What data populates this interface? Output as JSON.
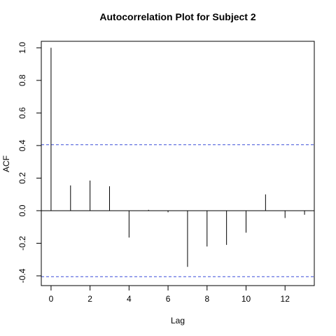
{
  "chart_data": {
    "type": "bar",
    "title": "Autocorrelation Plot for Subject 2",
    "xlabel": "Lag",
    "ylabel": "ACF",
    "xlim": [
      -0.5,
      13.5
    ],
    "ylim": [
      -0.46,
      1.04
    ],
    "x_ticks": [
      0,
      2,
      4,
      6,
      8,
      10,
      12
    ],
    "y_ticks": [
      -0.4,
      -0.2,
      0.0,
      0.2,
      0.4,
      0.6,
      0.8,
      1.0
    ],
    "y_tick_labels": [
      "-0.4",
      "-0.2",
      "0.0",
      "0.2",
      "0.4",
      "0.6",
      "0.8",
      "1.0"
    ],
    "lags": [
      0,
      1,
      2,
      3,
      4,
      5,
      6,
      7,
      8,
      9,
      10,
      11,
      12,
      13
    ],
    "values": [
      1.0,
      0.155,
      0.185,
      0.15,
      -0.165,
      0.005,
      -0.01,
      -0.345,
      -0.22,
      -0.21,
      -0.135,
      0.1,
      -0.045,
      -0.025
    ],
    "confidence_bound": 0.405,
    "confidence_color": "#3b4fd9",
    "spike_color": "#000000"
  }
}
